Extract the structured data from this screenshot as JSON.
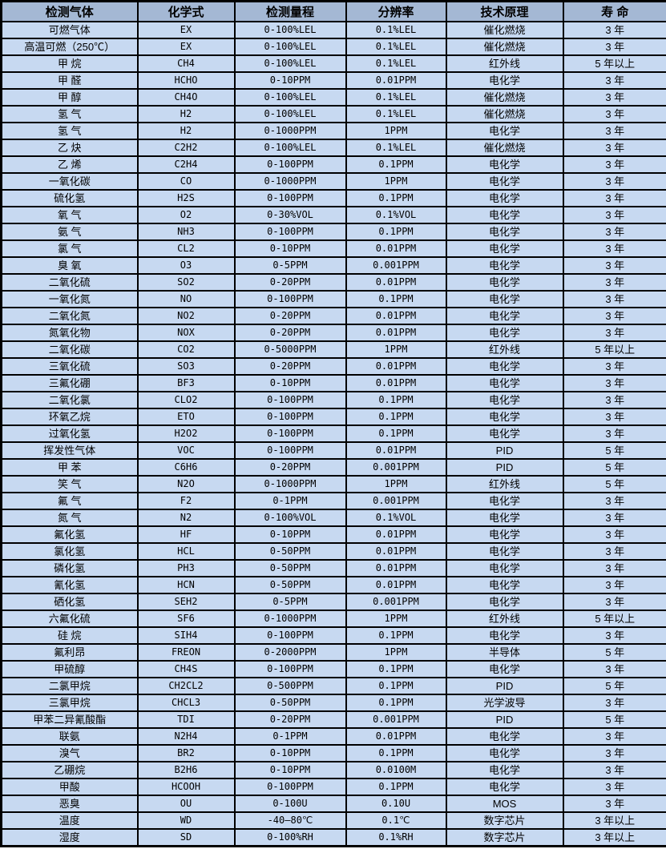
{
  "colors": {
    "header-bg": "#a4b8d4",
    "row-bg": "#c7d9f1",
    "border-color": "#000000",
    "text-color": "#000000"
  },
  "table": {
    "columns": [
      "检测气体",
      "化学式",
      "检测量程",
      "分辨率",
      "技术原理",
      "寿 命"
    ],
    "rows": [
      {
        "gas": "可燃气体",
        "formula": "EX",
        "range": "0-100%LEL",
        "resolution": "0.1%LEL",
        "principle": "催化燃烧",
        "life": "3 年"
      },
      {
        "gas": "高温可燃（250℃）",
        "formula": "EX",
        "range": "0-100%LEL",
        "resolution": "0.1%LEL",
        "principle": "催化燃烧",
        "life": "3 年"
      },
      {
        "gas": "甲 烷",
        "formula": "CH4",
        "range": "0-100%LEL",
        "resolution": "0.1%LEL",
        "principle": "红外线",
        "life": "5 年以上"
      },
      {
        "gas": "甲 醛",
        "formula": "HCHO",
        "range": "0-10PPM",
        "resolution": "0.01PPM",
        "principle": "电化学",
        "life": "3 年"
      },
      {
        "gas": "甲 醇",
        "formula": "CH4O",
        "range": "0-100%LEL",
        "resolution": "0.1%LEL",
        "principle": "催化燃烧",
        "life": "3 年"
      },
      {
        "gas": "氢 气",
        "formula": "H2",
        "range": "0-100%LEL",
        "resolution": "0.1%LEL",
        "principle": "催化燃烧",
        "life": "3 年"
      },
      {
        "gas": "氢 气",
        "formula": "H2",
        "range": "0-1000PPM",
        "resolution": "1PPM",
        "principle": "电化学",
        "life": "3 年"
      },
      {
        "gas": "乙 炔",
        "formula": "C2H2",
        "range": "0-100%LEL",
        "resolution": "0.1%LEL",
        "principle": "催化燃烧",
        "life": "3 年"
      },
      {
        "gas": "乙 烯",
        "formula": "C2H4",
        "range": "0-100PPM",
        "resolution": "0.1PPM",
        "principle": "电化学",
        "life": "3 年"
      },
      {
        "gas": "一氧化碳",
        "formula": "CO",
        "range": "0-1000PPM",
        "resolution": "1PPM",
        "principle": "电化学",
        "life": "3 年"
      },
      {
        "gas": "硫化氢",
        "formula": "H2S",
        "range": "0-100PPM",
        "resolution": "0.1PPM",
        "principle": "电化学",
        "life": "3 年"
      },
      {
        "gas": "氧 气",
        "formula": "O2",
        "range": "0-30%VOL",
        "resolution": "0.1%VOL",
        "principle": "电化学",
        "life": "3 年"
      },
      {
        "gas": "氨 气",
        "formula": "NH3",
        "range": "0-100PPM",
        "resolution": "0.1PPM",
        "principle": "电化学",
        "life": "3 年"
      },
      {
        "gas": "氯 气",
        "formula": "CL2",
        "range": "0-10PPM",
        "resolution": "0.01PPM",
        "principle": "电化学",
        "life": "3 年"
      },
      {
        "gas": "臭 氧",
        "formula": "O3",
        "range": "0-5PPM",
        "resolution": "0.001PPM",
        "principle": "电化学",
        "life": "3 年"
      },
      {
        "gas": "二氧化硫",
        "formula": "SO2",
        "range": "0-20PPM",
        "resolution": "0.01PPM",
        "principle": "电化学",
        "life": "3 年"
      },
      {
        "gas": "一氧化氮",
        "formula": "NO",
        "range": "0-100PPM",
        "resolution": "0.1PPM",
        "principle": "电化学",
        "life": "3 年"
      },
      {
        "gas": "二氧化氮",
        "formula": "NO2",
        "range": "0-20PPM",
        "resolution": "0.01PPM",
        "principle": "电化学",
        "life": "3 年"
      },
      {
        "gas": "氮氧化物",
        "formula": "NOX",
        "range": "0-20PPM",
        "resolution": "0.01PPM",
        "principle": "电化学",
        "life": "3 年"
      },
      {
        "gas": "二氧化碳",
        "formula": "CO2",
        "range": "0-5000PPM",
        "resolution": "1PPM",
        "principle": "红外线",
        "life": "5 年以上"
      },
      {
        "gas": "三氧化硫",
        "formula": "SO3",
        "range": "0-20PPM",
        "resolution": "0.01PPM",
        "principle": "电化学",
        "life": "3 年"
      },
      {
        "gas": "三氟化硼",
        "formula": "BF3",
        "range": "0-10PPM",
        "resolution": "0.01PPM",
        "principle": "电化学",
        "life": "3 年"
      },
      {
        "gas": "二氧化氯",
        "formula": "CLO2",
        "range": "0-100PPM",
        "resolution": "0.1PPM",
        "principle": "电化学",
        "life": "3 年"
      },
      {
        "gas": "环氧乙烷",
        "formula": "ETO",
        "range": "0-100PPM",
        "resolution": "0.1PPM",
        "principle": "电化学",
        "life": "3 年"
      },
      {
        "gas": "过氧化氢",
        "formula": "H2O2",
        "range": "0-100PPM",
        "resolution": "0.1PPM",
        "principle": "电化学",
        "life": "3 年"
      },
      {
        "gas": "挥发性气体",
        "formula": "VOC",
        "range": "0-100PPM",
        "resolution": "0.01PPM",
        "principle": "PID",
        "life": "5 年"
      },
      {
        "gas": "甲 苯",
        "formula": "C6H6",
        "range": "0-20PPM",
        "resolution": "0.001PPM",
        "principle": "PID",
        "life": "5 年"
      },
      {
        "gas": "笑 气",
        "formula": "N2O",
        "range": "0-1000PPM",
        "resolution": "1PPM",
        "principle": "红外线",
        "life": "5 年"
      },
      {
        "gas": "氟 气",
        "formula": "F2",
        "range": "0-1PPM",
        "resolution": "0.001PPM",
        "principle": "电化学",
        "life": "3 年"
      },
      {
        "gas": "氮 气",
        "formula": "N2",
        "range": "0-100%VOL",
        "resolution": "0.1%VOL",
        "principle": "电化学",
        "life": "3 年"
      },
      {
        "gas": "氟化氢",
        "formula": "HF",
        "range": "0-10PPM",
        "resolution": "0.01PPM",
        "principle": "电化学",
        "life": "3 年"
      },
      {
        "gas": "氯化氢",
        "formula": "HCL",
        "range": "0-50PPM",
        "resolution": "0.01PPM",
        "principle": "电化学",
        "life": "3 年"
      },
      {
        "gas": "磷化氢",
        "formula": "PH3",
        "range": "0-50PPM",
        "resolution": "0.01PPM",
        "principle": "电化学",
        "life": "3 年"
      },
      {
        "gas": "氰化氢",
        "formula": "HCN",
        "range": "0-50PPM",
        "resolution": "0.01PPM",
        "principle": "电化学",
        "life": "3 年"
      },
      {
        "gas": "硒化氢",
        "formula": "SEH2",
        "range": "0-5PPM",
        "resolution": "0.001PPM",
        "principle": "电化学",
        "life": "3 年"
      },
      {
        "gas": "六氟化硫",
        "formula": "SF6",
        "range": "0-1000PPM",
        "resolution": "1PPM",
        "principle": "红外线",
        "life": "5 年以上"
      },
      {
        "gas": "硅 烷",
        "formula": "SIH4",
        "range": "0-100PPM",
        "resolution": "0.1PPM",
        "principle": "电化学",
        "life": "3 年"
      },
      {
        "gas": "氟利昂",
        "formula": "FREON",
        "range": "0-2000PPM",
        "resolution": "1PPM",
        "principle": "半导体",
        "life": "5 年"
      },
      {
        "gas": "甲硫醇",
        "formula": "CH4S",
        "range": "0-100PPM",
        "resolution": "0.1PPM",
        "principle": "电化学",
        "life": "3 年"
      },
      {
        "gas": "二氯甲烷",
        "formula": "CH2CL2",
        "range": "0-500PPM",
        "resolution": "0.1PPM",
        "principle": "PID",
        "life": "5 年"
      },
      {
        "gas": "三氯甲烷",
        "formula": "CHCL3",
        "range": "0-50PPM",
        "resolution": "0.1PPM",
        "principle": "光学波导",
        "life": "3 年"
      },
      {
        "gas": "甲苯二异氰酸酯",
        "formula": "TDI",
        "range": "0-20PPM",
        "resolution": "0.001PPM",
        "principle": "PID",
        "life": "5 年"
      },
      {
        "gas": "联氨",
        "formula": "N2H4",
        "range": "0-1PPM",
        "resolution": "0.01PPM",
        "principle": "电化学",
        "life": "3 年"
      },
      {
        "gas": "溴气",
        "formula": "BR2",
        "range": "0-10PPM",
        "resolution": "0.1PPM",
        "principle": "电化学",
        "life": "3 年"
      },
      {
        "gas": "乙硼烷",
        "formula": "B2H6",
        "range": "0-10PPM",
        "resolution": "0.0100M",
        "principle": "电化学",
        "life": "3 年"
      },
      {
        "gas": "甲酸",
        "formula": "HCOOH",
        "range": "0-100PPM",
        "resolution": "0.1PPM",
        "principle": "电化学",
        "life": "3 年"
      },
      {
        "gas": "恶臭",
        "formula": "OU",
        "range": "0-100U",
        "resolution": "0.10U",
        "principle": "MOS",
        "life": "3 年"
      },
      {
        "gas": "温度",
        "formula": "WD",
        "range": "-40—80℃",
        "resolution": "0.1℃",
        "principle": "数字芯片",
        "life": "3 年以上"
      },
      {
        "gas": "湿度",
        "formula": "SD",
        "range": "0-100%RH",
        "resolution": "0.1%RH",
        "principle": "数字芯片",
        "life": "3 年以上"
      }
    ]
  }
}
